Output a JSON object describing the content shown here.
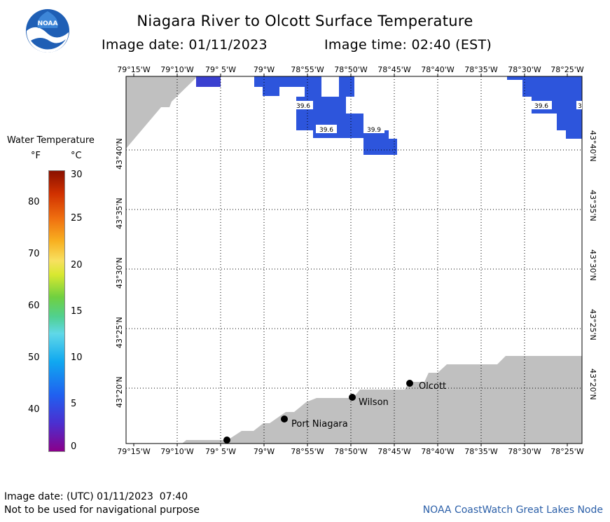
{
  "header": {
    "title": "Niagara River to Olcott Surface Temperature",
    "image_date_label": "Image date: 01/11/2023",
    "image_time_label": "Image time: 02:40 (EST)"
  },
  "logo": {
    "text": "NOAA"
  },
  "map": {
    "lon_labels": [
      "79°15'W",
      "79°10'W",
      "79° 5'W",
      "79°W",
      "78°55'W",
      "78°50'W",
      "78°45'W",
      "78°40'W",
      "78°35'W",
      "78°30'W",
      "78°25'W"
    ],
    "lat_labels": [
      "43°40'N",
      "43°35'N",
      "43°30'N",
      "43°25'N",
      "43°20'N"
    ],
    "temperature_labels": [
      "39.6",
      "39.6",
      "39.9",
      "39.6",
      "3"
    ],
    "places": [
      "Olcott",
      "Wilson",
      "Port Niagara"
    ],
    "colors": {
      "land": "#c0c0c0",
      "water": "#ffffff",
      "cold_water": "#2d55dc",
      "colder_water": "#3a40d0"
    }
  },
  "legend": {
    "title": "Water Temperature",
    "unit_f": "°F",
    "unit_c": "°C",
    "f_ticks": [
      "80",
      "70",
      "60",
      "50",
      "40"
    ],
    "c_ticks": [
      "30",
      "25",
      "20",
      "15",
      "10",
      "5",
      "0"
    ]
  },
  "footer": {
    "utc_line": "Image date: (UTC) 01/11/2023  07:40",
    "disclaimer": "Not to be used for navigational purpose",
    "credit": "NOAA CoastWatch Great Lakes Node"
  }
}
